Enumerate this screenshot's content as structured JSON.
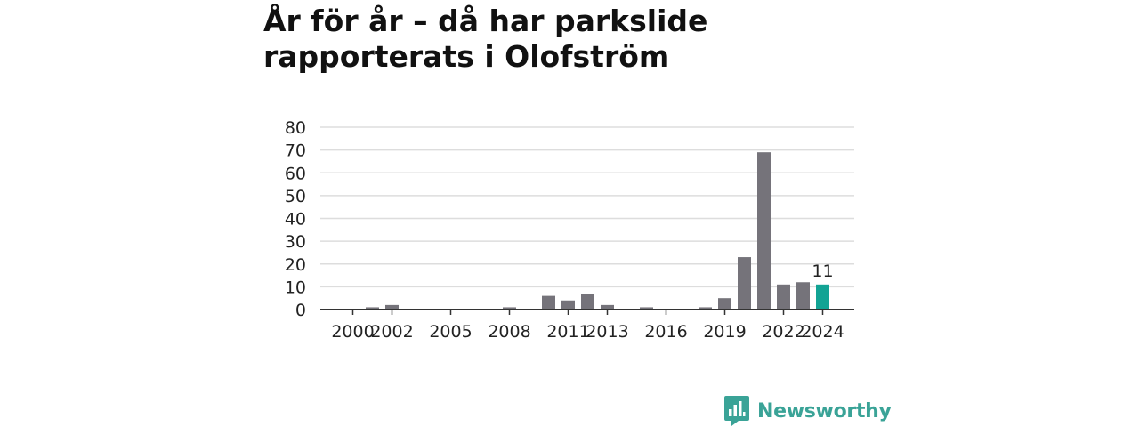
{
  "title": "År för år – då har parkslide rapporterats i Olofström",
  "brand": {
    "name": "Newsworthy",
    "color": "#3aa397",
    "icon": "bar-chart-logo-icon"
  },
  "chart_data": {
    "type": "bar",
    "title": "År för år – då har parkslide rapporterats i Olofström",
    "xlabel": "",
    "ylabel": "",
    "ylim": [
      0,
      80
    ],
    "yticks": [
      0,
      10,
      20,
      30,
      40,
      50,
      60,
      70,
      80
    ],
    "xtick_labels": [
      "2000",
      "2002",
      "2005",
      "2008",
      "2011",
      "2013",
      "2016",
      "2019",
      "2022",
      "2024"
    ],
    "grid": true,
    "colors": {
      "default": "#75737a",
      "highlight": "#12a394"
    },
    "highlight_category": "2024",
    "data_labels": [
      {
        "category": "2024",
        "text": "11"
      }
    ],
    "categories": [
      "2000",
      "2001",
      "2002",
      "2003",
      "2004",
      "2005",
      "2006",
      "2007",
      "2008",
      "2009",
      "2010",
      "2011",
      "2012",
      "2013",
      "2014",
      "2015",
      "2016",
      "2017",
      "2018",
      "2019",
      "2020",
      "2021",
      "2022",
      "2023",
      "2024"
    ],
    "values": [
      0,
      1,
      2,
      0,
      0,
      0,
      0,
      0,
      1,
      0,
      6,
      4,
      7,
      2,
      0,
      1,
      0,
      0,
      1,
      5,
      23,
      69,
      11,
      12,
      11
    ]
  }
}
